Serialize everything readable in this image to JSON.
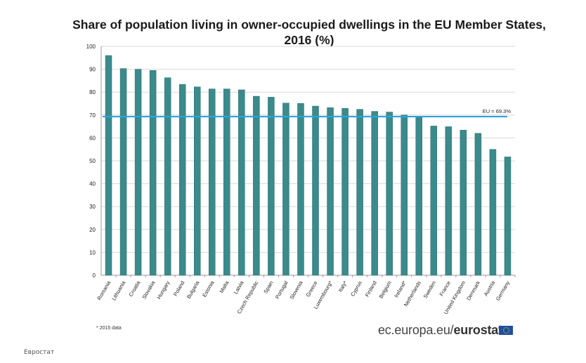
{
  "chart_data": {
    "type": "bar",
    "title": "Share of population living in owner-occupied dwellings in the EU Member States, 2016 (%)",
    "title_lines": [
      "Share of population living in owner-occupied dwellings in the EU Member States,",
      "2016 (%)"
    ],
    "xlabel": "",
    "ylabel": "",
    "ylim": [
      0,
      100
    ],
    "yticks": [
      0,
      10,
      20,
      30,
      40,
      50,
      60,
      70,
      80,
      90,
      100
    ],
    "grid": true,
    "categories": [
      "Romania",
      "Lithuania",
      "Croatia",
      "Slovakia",
      "Hungary",
      "Poland",
      "Bulgaria",
      "Estonia",
      "Malta",
      "Latvia",
      "Czech Republic",
      "Spain",
      "Portugal",
      "Slovenia",
      "Greece",
      "Luxembourg*",
      "Italy*",
      "Cyprus",
      "Finland",
      "Belgium",
      "Ireland*",
      "Netherlands",
      "Sweden",
      "France",
      "United Kingdom",
      "Denmark",
      "Austria",
      "Germany"
    ],
    "values": [
      96.0,
      90.3,
      90.0,
      89.5,
      86.3,
      83.4,
      82.3,
      81.4,
      81.4,
      81.0,
      78.2,
      77.8,
      75.2,
      75.1,
      73.9,
      73.2,
      72.9,
      72.5,
      71.6,
      71.3,
      70.0,
      69.0,
      65.2,
      64.9,
      63.4,
      62.0,
      55.0,
      51.7
    ],
    "reference_line": {
      "label": "EU = 69.3%",
      "value": 69.3
    },
    "colors": {
      "bar": "#3b8a8c",
      "bar_edge": "#2b6e70",
      "reference": "#2ea4dc",
      "grid": "#d9d9d9"
    }
  },
  "footnote": "* 2015 data",
  "brand": {
    "prefix": "ec.europa.eu/",
    "bold": "eurostat"
  },
  "source_caption": "Евростат"
}
